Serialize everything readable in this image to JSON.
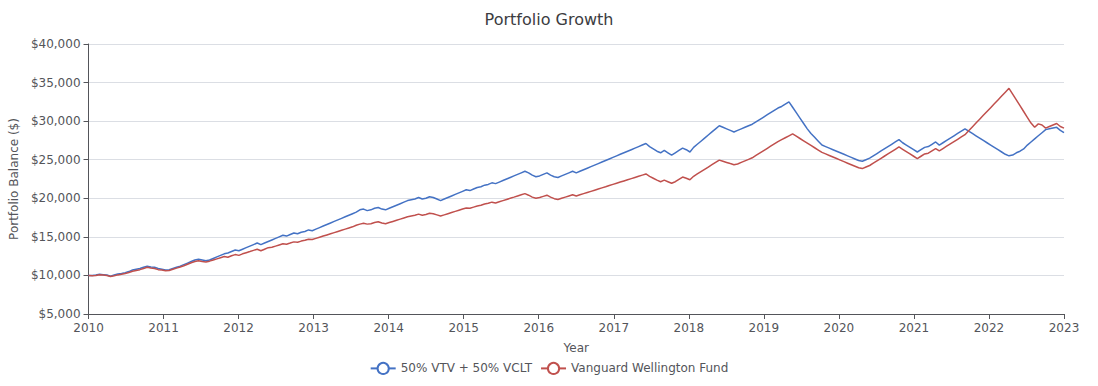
{
  "chart_data": {
    "type": "line",
    "title": "Portfolio Growth",
    "xlabel": "Year",
    "ylabel": "Portfolio Balance ($)",
    "x": [
      2010,
      2010.0489,
      2010.0977,
      2010.1466,
      2010.1955,
      2010.2444,
      2010.2932,
      2010.3421,
      2010.391,
      2010.4398,
      2010.4887,
      2010.5376,
      2010.5865,
      2010.6353,
      2010.6842,
      2010.7331,
      2010.782,
      2010.8308,
      2010.8797,
      2010.9286,
      2010.9774,
      2011.0263,
      2011.0752,
      2011.1241,
      2011.1729,
      2011.2218,
      2011.2707,
      2011.3195,
      2011.3684,
      2011.4173,
      2011.4662,
      2011.515,
      2011.5639,
      2011.6128,
      2011.6617,
      2011.7105,
      2011.7594,
      2011.8083,
      2011.8571,
      2011.906,
      2011.9549,
      2012.0038,
      2012.0526,
      2012.1015,
      2012.1504,
      2012.1992,
      2012.2481,
      2012.297,
      2012.3459,
      2012.3947,
      2012.4436,
      2012.4925,
      2012.5414,
      2012.5902,
      2012.6391,
      2012.688,
      2012.7368,
      2012.7857,
      2012.8346,
      2012.8835,
      2012.9323,
      2012.9812,
      2013.0301,
      2013.0789,
      2013.1278,
      2013.1767,
      2013.2256,
      2013.2744,
      2013.3233,
      2013.3722,
      2013.4211,
      2013.4699,
      2013.5188,
      2013.5677,
      2013.6165,
      2013.6654,
      2013.7143,
      2013.7632,
      2013.812,
      2013.8609,
      2013.9098,
      2013.9586,
      2014.0075,
      2014.0564,
      2014.1053,
      2014.1541,
      2014.203,
      2014.2519,
      2014.3008,
      2014.3496,
      2014.3985,
      2014.4474,
      2014.4962,
      2014.5451,
      2014.594,
      2014.6429,
      2014.6917,
      2014.7406,
      2014.7895,
      2014.8383,
      2014.8872,
      2014.9361,
      2014.985,
      2015.0338,
      2015.0827,
      2015.1316,
      2015.1805,
      2015.2293,
      2015.2782,
      2015.3271,
      2015.3759,
      2015.4248,
      2015.4737,
      2015.5226,
      2015.5714,
      2015.6203,
      2015.6692,
      2015.718,
      2015.7669,
      2015.8158,
      2015.8647,
      2015.9135,
      2015.9624,
      2016.0113,
      2016.0602,
      2016.109,
      2016.1579,
      2016.2068,
      2016.2556,
      2016.3045,
      2016.3534,
      2016.4023,
      2016.4511,
      2016.5,
      2016.5489,
      2016.5977,
      2016.6466,
      2016.6955,
      2016.7444,
      2016.7932,
      2016.8421,
      2016.891,
      2016.9398,
      2016.9887,
      2017.0376,
      2017.0865,
      2017.1353,
      2017.1842,
      2017.2331,
      2017.282,
      2017.3308,
      2017.3797,
      2017.4286,
      2017.4774,
      2017.5263,
      2017.5752,
      2017.6241,
      2017.6729,
      2017.7218,
      2017.7707,
      2017.8195,
      2017.8684,
      2017.9173,
      2017.9662,
      2018.015,
      2018.0639,
      2018.1128,
      2018.1617,
      2018.2105,
      2018.2594,
      2018.3083,
      2018.3571,
      2018.406,
      2018.4549,
      2018.5038,
      2018.5526,
      2018.6015,
      2018.6504,
      2018.6992,
      2018.7481,
      2018.797,
      2018.8459,
      2018.8947,
      2018.9436,
      2018.9925,
      2019.0414,
      2019.0902,
      2019.1391,
      2019.188,
      2019.2368,
      2019.2857,
      2019.3346,
      2019.3835,
      2019.4323,
      2019.4812,
      2019.5301,
      2019.5789,
      2019.6278,
      2019.6767,
      2019.7256,
      2019.7744,
      2019.8233,
      2019.8722,
      2019.9211,
      2019.9699,
      2020.0188,
      2020.0677,
      2020.1165,
      2020.1654,
      2020.2143,
      2020.2632,
      2020.312,
      2020.3609,
      2020.4098,
      2020.4586,
      2020.5075,
      2020.5564,
      2020.6053,
      2020.6541,
      2020.703,
      2020.7519,
      2020.8008,
      2020.8496,
      2020.8985,
      2020.9474,
      2020.9962,
      2021.0451,
      2021.094,
      2021.1429,
      2021.1917,
      2021.2406,
      2021.2895,
      2021.3383,
      2021.3872,
      2021.4361,
      2021.485,
      2021.5338,
      2021.5827,
      2021.6316,
      2021.6805,
      2021.7293,
      2021.7782,
      2021.8271,
      2021.8759,
      2021.9248,
      2021.9737,
      2022.0226,
      2022.0714,
      2022.1203,
      2022.1692,
      2022.218,
      2022.2669,
      2022.3158,
      2022.3647,
      2022.4135,
      2022.4624,
      2022.5113,
      2022.5602,
      2022.609,
      2022.6579,
      2022.7068,
      2022.7556,
      2022.8045,
      2022.8534,
      2022.9023,
      2022.9511,
      2023
    ],
    "series": [
      {
        "name": "50% VTV + 50% VCLT",
        "color": "#4472C4",
        "values": [
          10000,
          9980,
          10050,
          10150,
          10100,
          10050,
          9900,
          10050,
          10180,
          10250,
          10350,
          10500,
          10700,
          10800,
          10900,
          11050,
          11200,
          11100,
          11050,
          10900,
          10800,
          10700,
          10750,
          10900,
          11050,
          11200,
          11400,
          11600,
          11800,
          12000,
          12100,
          12000,
          11900,
          12000,
          12200,
          12400,
          12600,
          12800,
          12900,
          13100,
          13300,
          13200,
          13400,
          13600,
          13800,
          14000,
          14200,
          14000,
          14200,
          14400,
          14600,
          14800,
          15000,
          15200,
          15100,
          15300,
          15500,
          15400,
          15600,
          15700,
          15900,
          15800,
          16000,
          16200,
          16400,
          16600,
          16800,
          17000,
          17200,
          17400,
          17600,
          17800,
          18000,
          18200,
          18500,
          18600,
          18400,
          18500,
          18700,
          18800,
          18600,
          18500,
          18700,
          18900,
          19100,
          19300,
          19500,
          19700,
          19800,
          19900,
          20100,
          19900,
          20000,
          20200,
          20100,
          19900,
          19700,
          19900,
          20100,
          20300,
          20500,
          20700,
          20900,
          21100,
          21000,
          21200,
          21400,
          21500,
          21700,
          21800,
          22000,
          21900,
          22100,
          22300,
          22500,
          22700,
          22900,
          23100,
          23300,
          23500,
          23300,
          23000,
          22800,
          22900,
          23100,
          23300,
          23000,
          22800,
          22700,
          22900,
          23100,
          23300,
          23500,
          23300,
          23500,
          23700,
          23900,
          24100,
          24300,
          24500,
          24700,
          24900,
          25100,
          25300,
          25500,
          25700,
          25900,
          26100,
          26300,
          26500,
          26700,
          26900,
          27100,
          26700,
          26400,
          26100,
          25900,
          26200,
          25900,
          25600,
          25900,
          26200,
          26500,
          26300,
          26000,
          26600,
          27000,
          27400,
          27800,
          28200,
          28600,
          29000,
          29400,
          29200,
          29000,
          28800,
          28600,
          28800,
          29000,
          29200,
          29400,
          29600,
          29900,
          30200,
          30500,
          30800,
          31100,
          31400,
          31700,
          31900,
          32200,
          32500,
          31800,
          31100,
          30400,
          29700,
          29000,
          28400,
          27900,
          27400,
          26900,
          26700,
          26500,
          26300,
          26100,
          25900,
          25700,
          25500,
          25300,
          25100,
          24900,
          24800,
          25000,
          25200,
          25500,
          25800,
          26100,
          26400,
          26700,
          27000,
          27300,
          27600,
          27200,
          26900,
          26600,
          26300,
          26000,
          26300,
          26600,
          26700,
          27000,
          27300,
          26900,
          27200,
          27500,
          27800,
          28100,
          28400,
          28700,
          29000,
          28700,
          28400,
          28100,
          27800,
          27500,
          27200,
          26900,
          26600,
          26300,
          26000,
          25700,
          25500,
          25600,
          25900,
          26100,
          26400,
          26900,
          27300,
          27700,
          28100,
          28500,
          28900,
          29000,
          29100,
          29200,
          28800,
          28500
        ]
      },
      {
        "name": "Vanguard Wellington Fund",
        "color": "#C0504D",
        "values": [
          10000,
          9950,
          10000,
          10080,
          10050,
          10000,
          9850,
          9950,
          10070,
          10150,
          10250,
          10380,
          10550,
          10650,
          10750,
          10900,
          11050,
          10950,
          10900,
          10750,
          10700,
          10600,
          10650,
          10800,
          10950,
          11100,
          11250,
          11450,
          11650,
          11800,
          11900,
          11800,
          11750,
          11850,
          12000,
          12150,
          12300,
          12450,
          12350,
          12550,
          12700,
          12600,
          12800,
          12950,
          13100,
          13250,
          13400,
          13200,
          13400,
          13600,
          13650,
          13800,
          13950,
          14100,
          14050,
          14200,
          14350,
          14300,
          14450,
          14550,
          14700,
          14650,
          14800,
          14950,
          15100,
          15250,
          15400,
          15550,
          15700,
          15850,
          16000,
          16150,
          16300,
          16500,
          16650,
          16750,
          16650,
          16700,
          16850,
          16950,
          16800,
          16700,
          16850,
          17000,
          17150,
          17300,
          17450,
          17600,
          17700,
          17800,
          17950,
          17800,
          17900,
          18050,
          18000,
          17850,
          17700,
          17850,
          18000,
          18150,
          18300,
          18450,
          18600,
          18750,
          18700,
          18850,
          19000,
          19100,
          19250,
          19350,
          19500,
          19400,
          19550,
          19700,
          19850,
          20000,
          20150,
          20300,
          20450,
          20600,
          20400,
          20150,
          20000,
          20100,
          20250,
          20400,
          20150,
          19950,
          19850,
          20000,
          20150,
          20300,
          20450,
          20300,
          20450,
          20600,
          20750,
          20900,
          21050,
          21200,
          21350,
          21500,
          21650,
          21800,
          21950,
          22100,
          22250,
          22400,
          22550,
          22700,
          22850,
          23000,
          23150,
          22850,
          22600,
          22350,
          22150,
          22350,
          22150,
          21950,
          22150,
          22450,
          22750,
          22600,
          22400,
          22850,
          23150,
          23450,
          23750,
          24050,
          24350,
          24650,
          24950,
          24800,
          24650,
          24500,
          24350,
          24450,
          24650,
          24850,
          25050,
          25250,
          25550,
          25850,
          26150,
          26450,
          26750,
          27050,
          27350,
          27600,
          27850,
          28100,
          28350,
          28050,
          27750,
          27450,
          27150,
          26850,
          26550,
          26250,
          25950,
          25750,
          25550,
          25350,
          25150,
          24950,
          24750,
          24550,
          24350,
          24150,
          23950,
          23850,
          24050,
          24250,
          24550,
          24850,
          25150,
          25450,
          25750,
          26050,
          26350,
          26650,
          26350,
          26050,
          25750,
          25450,
          25150,
          25450,
          25750,
          25850,
          26150,
          26450,
          26150,
          26450,
          26750,
          27050,
          27350,
          27650,
          27950,
          28250,
          28750,
          29250,
          29750,
          30250,
          30750,
          31250,
          31750,
          32250,
          32750,
          33250,
          33750,
          34250,
          33500,
          32750,
          32000,
          31250,
          30500,
          29750,
          29200,
          29650,
          29500,
          29100,
          29300,
          29500,
          29700,
          29300,
          29100
        ]
      }
    ],
    "xlim": [
      2010,
      2023
    ],
    "xticks": [
      2010,
      2011,
      2012,
      2013,
      2014,
      2015,
      2016,
      2017,
      2018,
      2019,
      2020,
      2021,
      2022,
      2023
    ],
    "ylim": [
      5000,
      40000
    ],
    "yticks": [
      {
        "value": 5000,
        "label": "$5,000"
      },
      {
        "value": 10000,
        "label": "$10,000"
      },
      {
        "value": 15000,
        "label": "$15,000"
      },
      {
        "value": 20000,
        "label": "$20,000"
      },
      {
        "value": 25000,
        "label": "$25,000"
      },
      {
        "value": 30000,
        "label": "$30,000"
      },
      {
        "value": 35000,
        "label": "$35,000"
      },
      {
        "value": 40000,
        "label": "$40,000"
      }
    ],
    "grid": true,
    "legend": "bottom"
  }
}
